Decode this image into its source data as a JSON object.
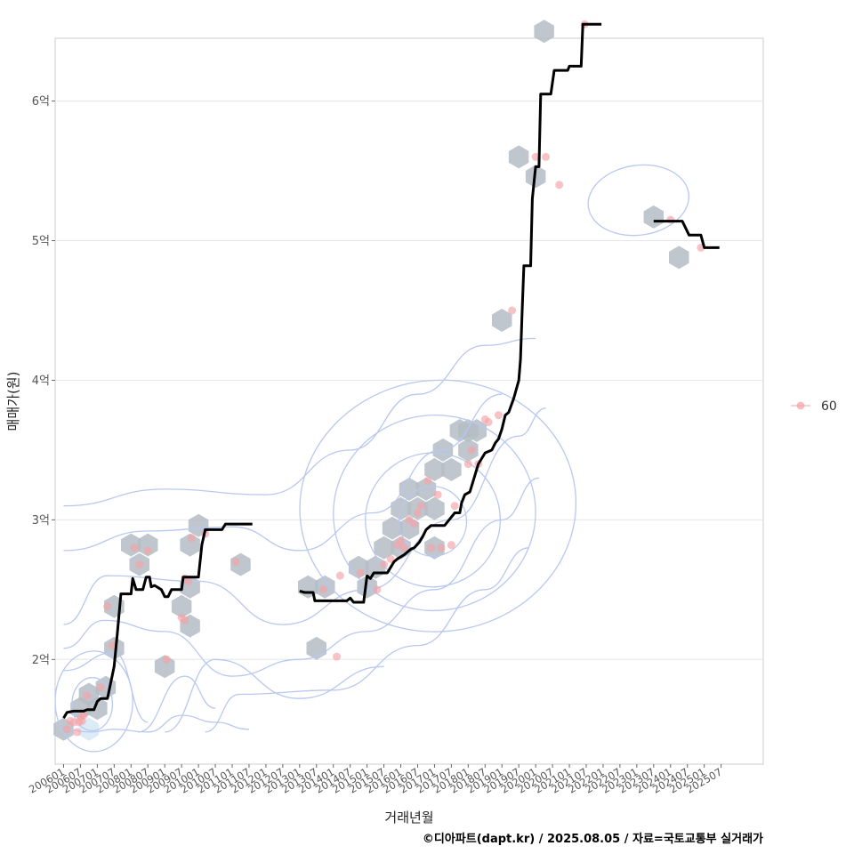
{
  "chart_data": {
    "type": "scatter",
    "xlabel": "거래년월",
    "ylabel": "매매가(원)",
    "caption": "©디아파트(dapt.kr) / 2025.08.05 / 자료=국토교통부 실거래가",
    "xlim": [
      2005.75,
      2026.75
    ],
    "ylim": [
      1.25,
      6.45
    ],
    "y_ticks": [
      {
        "value": 2,
        "label": "2억"
      },
      {
        "value": 3,
        "label": "3억"
      },
      {
        "value": 4,
        "label": "4억"
      },
      {
        "value": 5,
        "label": "5억"
      },
      {
        "value": 6,
        "label": "6억"
      }
    ],
    "x_ticks": [
      {
        "value": 2006.0,
        "label": "200601"
      },
      {
        "value": 2006.5,
        "label": "200607"
      },
      {
        "value": 2007.0,
        "label": "200701"
      },
      {
        "value": 2007.5,
        "label": "200707"
      },
      {
        "value": 2008.0,
        "label": "200801"
      },
      {
        "value": 2008.5,
        "label": "200807"
      },
      {
        "value": 2009.0,
        "label": "200901"
      },
      {
        "value": 2009.5,
        "label": "200907"
      },
      {
        "value": 2010.0,
        "label": "201001"
      },
      {
        "value": 2010.5,
        "label": "201007"
      },
      {
        "value": 2011.0,
        "label": "201101"
      },
      {
        "value": 2011.5,
        "label": "201107"
      },
      {
        "value": 2012.0,
        "label": "201201"
      },
      {
        "value": 2012.5,
        "label": "201207"
      },
      {
        "value": 2013.0,
        "label": "201301"
      },
      {
        "value": 2013.5,
        "label": "201307"
      },
      {
        "value": 2014.0,
        "label": "201401"
      },
      {
        "value": 2014.5,
        "label": "201407"
      },
      {
        "value": 2015.0,
        "label": "201501"
      },
      {
        "value": 2015.5,
        "label": "201507"
      },
      {
        "value": 2016.0,
        "label": "201601"
      },
      {
        "value": 2016.5,
        "label": "201607"
      },
      {
        "value": 2017.0,
        "label": "201701"
      },
      {
        "value": 2017.5,
        "label": "201707"
      },
      {
        "value": 2018.0,
        "label": "201801"
      },
      {
        "value": 2018.5,
        "label": "201807"
      },
      {
        "value": 2019.0,
        "label": "201901"
      },
      {
        "value": 2019.5,
        "label": "201907"
      },
      {
        "value": 2020.0,
        "label": "202001"
      },
      {
        "value": 2020.5,
        "label": "202007"
      },
      {
        "value": 2021.0,
        "label": "202101"
      },
      {
        "value": 2021.5,
        "label": "202107"
      },
      {
        "value": 2022.0,
        "label": "202201"
      },
      {
        "value": 2022.5,
        "label": "202207"
      },
      {
        "value": 2023.0,
        "label": "202301"
      },
      {
        "value": 2023.5,
        "label": "202307"
      },
      {
        "value": 2024.0,
        "label": "202401"
      },
      {
        "value": 2024.5,
        "label": "202407"
      },
      {
        "value": 2025.0,
        "label": "202501"
      },
      {
        "value": 2025.5,
        "label": "202507"
      }
    ],
    "legend": [
      {
        "label": "60",
        "color": "#f4a3a8"
      }
    ],
    "legend_position": "right",
    "grid": true,
    "colors": {
      "points": "#f4a3a8",
      "hex": "#b4bcc4",
      "hex_light": "#d6e7f5",
      "contour": "#b9c8f0",
      "trend": "#000000",
      "grid": "#e6e6e6",
      "border": "#cccccc"
    },
    "points": [
      [
        2006.1,
        1.5
      ],
      [
        2006.2,
        1.56
      ],
      [
        2006.3,
        1.55
      ],
      [
        2006.4,
        1.48
      ],
      [
        2006.5,
        1.58
      ],
      [
        2006.6,
        1.6
      ],
      [
        2006.7,
        1.74
      ],
      [
        2006.55,
        1.56
      ],
      [
        2006.45,
        1.55
      ],
      [
        2007.1,
        1.8
      ],
      [
        2007.45,
        2.1
      ],
      [
        2007.3,
        2.38
      ],
      [
        2008.1,
        2.8
      ],
      [
        2008.25,
        2.68
      ],
      [
        2008.5,
        2.78
      ],
      [
        2009.05,
        2.0
      ],
      [
        2009.5,
        2.3
      ],
      [
        2009.6,
        2.28
      ],
      [
        2009.6,
        2.58
      ],
      [
        2009.7,
        2.56
      ],
      [
        2009.8,
        2.87
      ],
      [
        2010.2,
        2.9
      ],
      [
        2011.1,
        2.7
      ],
      [
        2013.7,
        2.5
      ],
      [
        2014.1,
        2.02
      ],
      [
        2014.2,
        2.6
      ],
      [
        2014.8,
        2.62
      ],
      [
        2015.3,
        2.5
      ],
      [
        2015.5,
        2.68
      ],
      [
        2015.7,
        2.72
      ],
      [
        2015.9,
        2.82
      ],
      [
        2016.0,
        2.85
      ],
      [
        2016.1,
        2.8
      ],
      [
        2016.25,
        3.0
      ],
      [
        2016.4,
        2.97
      ],
      [
        2016.5,
        3.05
      ],
      [
        2016.6,
        3.1
      ],
      [
        2016.8,
        3.28
      ],
      [
        2016.9,
        2.8
      ],
      [
        2017.1,
        3.18
      ],
      [
        2017.2,
        2.8
      ],
      [
        2017.5,
        2.82
      ],
      [
        2017.6,
        3.1
      ],
      [
        2018.0,
        3.4
      ],
      [
        2018.1,
        3.5
      ],
      [
        2018.3,
        3.4
      ],
      [
        2018.5,
        3.72
      ],
      [
        2018.6,
        3.7
      ],
      [
        2018.9,
        3.75
      ],
      [
        2019.3,
        4.5
      ],
      [
        2020.0,
        5.6
      ],
      [
        2020.3,
        5.6
      ],
      [
        2020.7,
        5.4
      ],
      [
        2021.45,
        6.55
      ],
      [
        2024.0,
        5.15
      ],
      [
        2024.9,
        4.95
      ]
    ],
    "hexbins": [
      [
        2006.0,
        1.5
      ],
      [
        2006.5,
        1.65
      ],
      [
        2006.75,
        1.75
      ],
      [
        2007.0,
        1.65
      ],
      [
        2007.25,
        1.8
      ],
      [
        2006.75,
        1.5
      ],
      [
        2007.5,
        2.38
      ],
      [
        2007.5,
        2.08
      ],
      [
        2008.0,
        2.82
      ],
      [
        2008.5,
        2.82
      ],
      [
        2008.25,
        2.68
      ],
      [
        2009.0,
        1.95
      ],
      [
        2009.5,
        2.38
      ],
      [
        2009.75,
        2.52
      ],
      [
        2009.75,
        2.24
      ],
      [
        2009.75,
        2.82
      ],
      [
        2010.0,
        2.96
      ],
      [
        2011.25,
        2.68
      ],
      [
        2013.25,
        2.52
      ],
      [
        2013.5,
        2.08
      ],
      [
        2013.75,
        2.52
      ],
      [
        2014.75,
        2.66
      ],
      [
        2015.0,
        2.52
      ],
      [
        2015.25,
        2.66
      ],
      [
        2015.5,
        2.8
      ],
      [
        2015.75,
        2.94
      ],
      [
        2016.0,
        3.08
      ],
      [
        2016.25,
        3.22
      ],
      [
        2016.0,
        2.8
      ],
      [
        2016.25,
        2.94
      ],
      [
        2016.5,
        3.08
      ],
      [
        2016.75,
        3.22
      ],
      [
        2017.0,
        2.8
      ],
      [
        2017.0,
        3.36
      ],
      [
        2017.25,
        3.5
      ],
      [
        2017.0,
        3.08
      ],
      [
        2017.5,
        3.36
      ],
      [
        2017.75,
        3.64
      ],
      [
        2018.0,
        3.5
      ],
      [
        2018.25,
        3.64
      ],
      [
        2018.0,
        3.64
      ],
      [
        2019.0,
        4.43
      ],
      [
        2019.5,
        5.6
      ],
      [
        2020.0,
        5.46
      ],
      [
        2020.25,
        6.5
      ],
      [
        2023.5,
        5.17
      ],
      [
        2024.25,
        4.88
      ]
    ],
    "trend": [
      [
        2006.0,
        1.58
      ],
      [
        2006.1,
        1.62
      ],
      [
        2006.3,
        1.63
      ],
      [
        2006.6,
        1.63
      ],
      [
        2006.7,
        1.64
      ],
      [
        2006.9,
        1.64
      ],
      [
        2007.0,
        1.7
      ],
      [
        2007.1,
        1.72
      ],
      [
        2007.3,
        1.72
      ],
      [
        2007.5,
        1.95
      ],
      [
        2007.6,
        2.2
      ],
      [
        2007.7,
        2.47
      ],
      [
        2007.8,
        2.47
      ],
      [
        2008.0,
        2.47
      ],
      [
        2008.05,
        2.58
      ],
      [
        2008.15,
        2.5
      ],
      [
        2008.35,
        2.5
      ],
      [
        2008.45,
        2.59
      ],
      [
        2008.55,
        2.59
      ],
      [
        2008.6,
        2.52
      ],
      [
        2008.7,
        2.53
      ],
      [
        2008.9,
        2.5
      ],
      [
        2009.0,
        2.45
      ],
      [
        2009.1,
        2.45
      ],
      [
        2009.2,
        2.5
      ],
      [
        2009.35,
        2.5
      ],
      [
        2009.5,
        2.5
      ],
      [
        2009.55,
        2.59
      ],
      [
        2009.9,
        2.59
      ],
      [
        2010.0,
        2.59
      ],
      [
        2010.1,
        2.82
      ],
      [
        2010.2,
        2.93
      ],
      [
        2010.5,
        2.93
      ],
      [
        2010.7,
        2.93
      ],
      [
        2010.8,
        2.97
      ],
      [
        2011.6,
        2.97
      ],
      null,
      [
        2013.0,
        2.49
      ],
      [
        2013.15,
        2.48
      ],
      [
        2013.4,
        2.48
      ],
      [
        2013.45,
        2.42
      ],
      [
        2014.4,
        2.42
      ],
      [
        2014.5,
        2.44
      ],
      [
        2014.6,
        2.41
      ],
      [
        2014.9,
        2.41
      ],
      [
        2015.0,
        2.6
      ],
      [
        2015.1,
        2.58
      ],
      [
        2015.2,
        2.62
      ],
      [
        2015.6,
        2.62
      ],
      [
        2015.8,
        2.7
      ],
      [
        2015.9,
        2.72
      ],
      [
        2016.1,
        2.75
      ],
      [
        2016.3,
        2.79
      ],
      [
        2016.4,
        2.8
      ],
      [
        2016.55,
        2.84
      ],
      [
        2016.65,
        2.88
      ],
      [
        2016.75,
        2.93
      ],
      [
        2016.9,
        2.96
      ],
      [
        2017.3,
        2.96
      ],
      [
        2017.6,
        3.05
      ],
      [
        2017.75,
        3.05
      ],
      [
        2017.8,
        3.12
      ],
      [
        2017.9,
        3.18
      ],
      [
        2018.05,
        3.2
      ],
      [
        2018.2,
        3.32
      ],
      [
        2018.3,
        3.4
      ],
      [
        2018.5,
        3.48
      ],
      [
        2018.7,
        3.5
      ],
      [
        2018.8,
        3.55
      ],
      [
        2018.9,
        3.58
      ],
      [
        2019.0,
        3.65
      ],
      [
        2019.1,
        3.75
      ],
      [
        2019.2,
        3.77
      ],
      [
        2019.35,
        3.87
      ],
      [
        2019.5,
        4.0
      ],
      [
        2019.55,
        4.15
      ],
      [
        2019.6,
        4.5
      ],
      [
        2019.65,
        4.82
      ],
      [
        2019.85,
        4.82
      ],
      [
        2019.9,
        5.3
      ],
      [
        2020.0,
        5.53
      ],
      [
        2020.1,
        5.53
      ],
      [
        2020.15,
        6.05
      ],
      [
        2020.45,
        6.05
      ],
      [
        2020.55,
        6.22
      ],
      [
        2020.95,
        6.22
      ],
      [
        2021.0,
        6.25
      ],
      [
        2021.35,
        6.25
      ],
      [
        2021.4,
        6.55
      ],
      [
        2021.95,
        6.55
      ],
      null,
      [
        2023.5,
        5.14
      ],
      [
        2024.35,
        5.14
      ],
      [
        2024.55,
        5.04
      ],
      [
        2024.9,
        5.04
      ],
      [
        2025.0,
        4.95
      ],
      [
        2025.45,
        4.95
      ]
    ],
    "contours": [
      {
        "cx": 2006.85,
        "cy": 1.68,
        "rx": 0.6,
        "ry": 0.19,
        "rot": 0
      },
      {
        "cx": 2006.9,
        "cy": 1.7,
        "rx": 1.15,
        "ry": 0.36,
        "rot": 0
      },
      {
        "cx": 2016.95,
        "cy": 2.99,
        "rx": 1.0,
        "ry": 0.25,
        "rot": -5
      },
      {
        "cx": 2016.95,
        "cy": 3.0,
        "rx": 2.0,
        "ry": 0.48,
        "rot": -6
      },
      {
        "cx": 2017.0,
        "cy": 3.05,
        "rx": 3.0,
        "ry": 0.7,
        "rot": -7
      },
      {
        "cx": 2017.1,
        "cy": 3.1,
        "rx": 4.1,
        "ry": 0.9,
        "rot": -7
      },
      {
        "cx": 2023.05,
        "cy": 5.29,
        "rx": 1.5,
        "ry": 0.25,
        "rot": -8
      }
    ],
    "contour_paths": [
      [
        [
          2006.0,
          2.08
        ],
        [
          2007.2,
          2.28
        ],
        [
          2009.0,
          2.2
        ],
        [
          2011.0,
          1.88
        ],
        [
          2013.0,
          2.0
        ],
        [
          2015.0,
          2.2
        ],
        [
          2017.0,
          2.5
        ],
        [
          2019.0,
          3.0
        ],
        [
          2020.1,
          3.3
        ]
      ],
      [
        [
          2006.0,
          2.25
        ],
        [
          2007.3,
          2.6
        ],
        [
          2010.0,
          2.56
        ],
        [
          2012.5,
          2.25
        ],
        [
          2015.0,
          2.5
        ],
        [
          2017.5,
          3.0
        ],
        [
          2019.5,
          3.6
        ],
        [
          2020.3,
          3.8
        ]
      ],
      [
        [
          2006.0,
          2.78
        ],
        [
          2008.5,
          2.92
        ],
        [
          2011.0,
          2.95
        ],
        [
          2013.0,
          2.78
        ],
        [
          2015.2,
          3.05
        ],
        [
          2017.2,
          3.5
        ],
        [
          2019.0,
          3.9
        ]
      ],
      [
        [
          2006.0,
          3.1
        ],
        [
          2009.0,
          3.22
        ],
        [
          2012.0,
          3.18
        ],
        [
          2014.5,
          3.5
        ],
        [
          2016.5,
          3.9
        ],
        [
          2018.5,
          4.25
        ],
        [
          2020.0,
          4.3
        ]
      ],
      [
        [
          2006.0,
          1.5
        ],
        [
          2006.8,
          1.48
        ],
        [
          2007.5,
          1.5
        ],
        [
          2008.5,
          1.48
        ],
        [
          2009.5,
          1.6
        ],
        [
          2010.5,
          1.55
        ],
        [
          2011.5,
          1.5
        ]
      ],
      [
        [
          2006.0,
          1.92
        ],
        [
          2007.5,
          2.05
        ],
        [
          2008.5,
          1.55
        ]
      ],
      [
        [
          2008.2,
          1.48
        ],
        [
          2009.6,
          1.88
        ],
        [
          2010.5,
          1.65
        ]
      ],
      [
        [
          2009.0,
          1.48
        ],
        [
          2010.5,
          2.0
        ],
        [
          2013.0,
          1.72
        ],
        [
          2015.5,
          1.95
        ]
      ],
      [
        [
          2010.2,
          1.48
        ],
        [
          2011.2,
          1.75
        ],
        [
          2014.0,
          1.78
        ],
        [
          2016.5,
          2.1
        ],
        [
          2018.5,
          2.5
        ],
        [
          2019.8,
          2.8
        ]
      ]
    ]
  }
}
